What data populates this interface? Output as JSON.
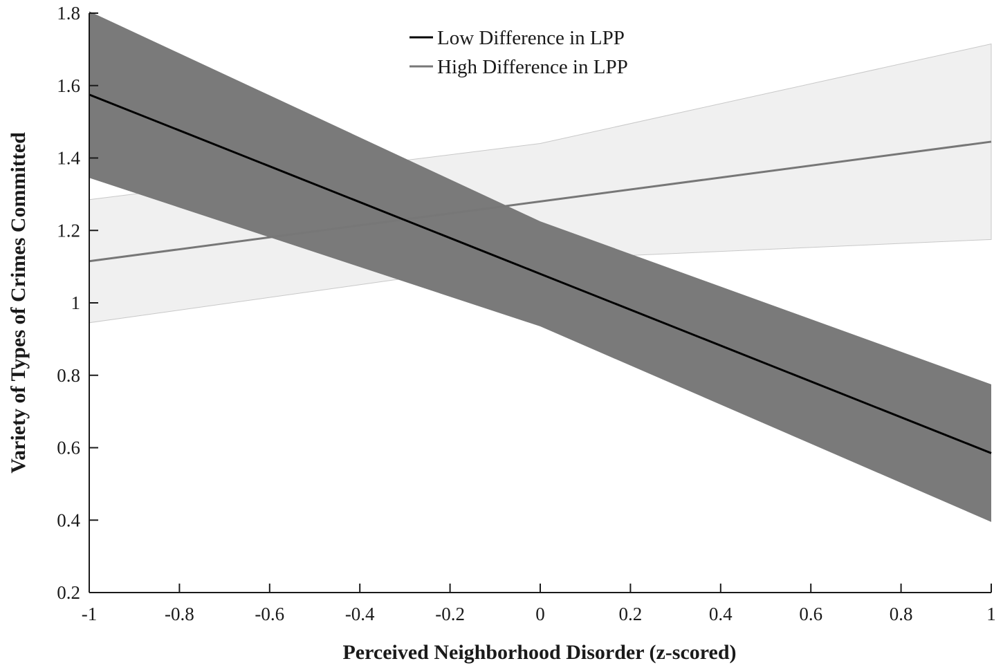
{
  "chart_data": {
    "type": "line",
    "xlabel": "Perceived Neighborhood Disorder (z-scored)",
    "ylabel": "Variety of Types of Crimes Committed",
    "xlim": [
      -1,
      1
    ],
    "ylim": [
      0.2,
      1.8
    ],
    "x_ticks": [
      -1,
      -0.8,
      -0.6,
      -0.4,
      -0.2,
      0,
      0.2,
      0.4,
      0.6,
      0.8,
      1
    ],
    "x_tick_labels": [
      "-1",
      "-0.8",
      "-0.6",
      "-0.4",
      "-0.2",
      "0",
      "0.2",
      "0.4",
      "0.6",
      "0.8",
      "1"
    ],
    "y_ticks": [
      0.2,
      0.4,
      0.6,
      0.8,
      1,
      1.2,
      1.4,
      1.6,
      1.8
    ],
    "y_tick_labels": [
      "0.2",
      "0.4",
      "0.6",
      "0.8",
      "1",
      "1.2",
      "1.4",
      "1.6",
      "1.8"
    ],
    "grid": false,
    "legend_position": "top-center",
    "series": [
      {
        "name": "Low Difference in LPP",
        "color": "#000000",
        "band_color": "#7a7a7a",
        "x": [
          -1,
          0,
          1
        ],
        "y": [
          1.575,
          1.08,
          0.585
        ],
        "ci_lower": [
          1.345,
          0.935,
          0.395
        ],
        "ci_upper": [
          1.805,
          1.225,
          0.775
        ]
      },
      {
        "name": "High Difference in LPP",
        "color": "#777777",
        "band_color": "#f0f0f0",
        "x": [
          -1,
          0,
          1
        ],
        "y": [
          1.115,
          1.28,
          1.445
        ],
        "ci_lower": [
          0.945,
          1.12,
          1.175
        ],
        "ci_upper": [
          1.285,
          1.44,
          1.715
        ]
      }
    ]
  }
}
